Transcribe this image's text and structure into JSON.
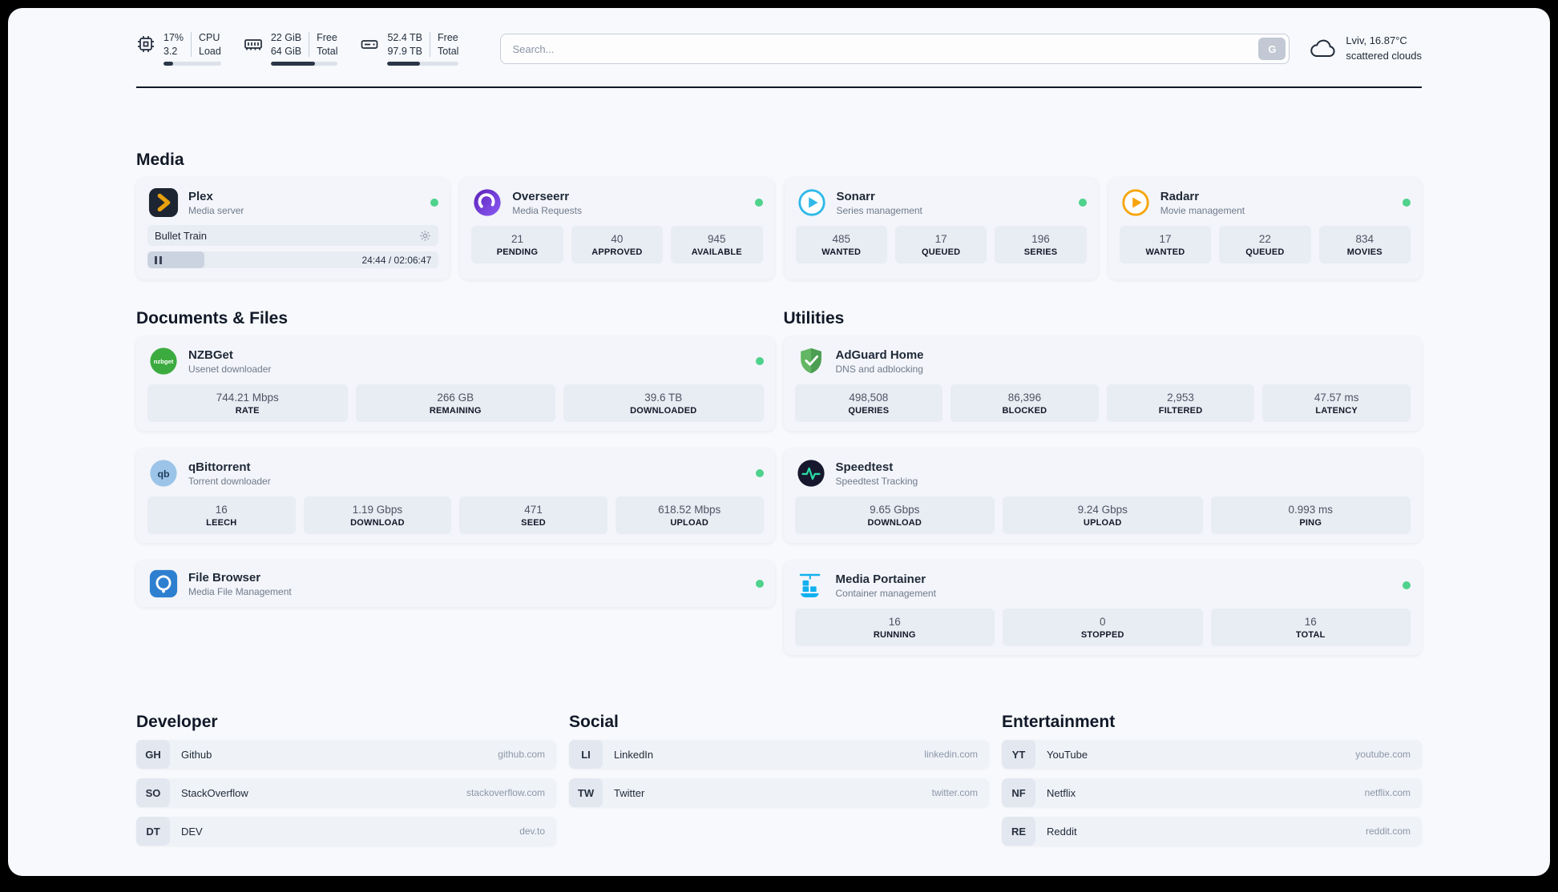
{
  "colors": {
    "status_ok": "#4fd28c",
    "divider": "#111827",
    "page_bg": "#f7f9fc",
    "tile_bg": "#e8ecf3",
    "bar_fill": "#2b3648"
  },
  "topbar": {
    "cpu": {
      "value1": "17%",
      "value2": "3.2",
      "label1": "CPU",
      "label2": "Load",
      "bar_pct": 17
    },
    "ram": {
      "value1": "22 GiB",
      "value2": "64 GiB",
      "label1": "Free",
      "label2": "Total",
      "bar_pct": 66
    },
    "disk": {
      "value1": "52.4 TB",
      "value2": "97.9 TB",
      "label1": "Free",
      "label2": "Total",
      "bar_pct": 46
    },
    "search": {
      "placeholder": "Search...",
      "button_label": "G"
    },
    "weather": {
      "location": "Lviv, 16.87°C",
      "condition": "scattered clouds"
    }
  },
  "media": {
    "title": "Media",
    "plex": {
      "name": "Plex",
      "subtitle": "Media server",
      "now_playing": "Bullet Train",
      "time": "24:44 / 02:06:47",
      "progress_pct": 19.6
    },
    "overseerr": {
      "name": "Overseerr",
      "subtitle": "Media Requests",
      "stats": [
        {
          "value": "21",
          "label": "PENDING"
        },
        {
          "value": "40",
          "label": "APPROVED"
        },
        {
          "value": "945",
          "label": "AVAILABLE"
        }
      ]
    },
    "sonarr": {
      "name": "Sonarr",
      "subtitle": "Series management",
      "stats": [
        {
          "value": "485",
          "label": "WANTED"
        },
        {
          "value": "17",
          "label": "QUEUED"
        },
        {
          "value": "196",
          "label": "SERIES"
        }
      ]
    },
    "radarr": {
      "name": "Radarr",
      "subtitle": "Movie management",
      "stats": [
        {
          "value": "17",
          "label": "WANTED"
        },
        {
          "value": "22",
          "label": "QUEUED"
        },
        {
          "value": "834",
          "label": "MOVIES"
        }
      ]
    }
  },
  "documents": {
    "title": "Documents & Files",
    "nzbget": {
      "name": "NZBGet",
      "subtitle": "Usenet downloader",
      "icon_label": "nzbget",
      "stats": [
        {
          "value": "744.21 Mbps",
          "label": "RATE"
        },
        {
          "value": "266 GB",
          "label": "REMAINING"
        },
        {
          "value": "39.6 TB",
          "label": "DOWNLOADED"
        }
      ]
    },
    "qbittorrent": {
      "name": "qBittorrent",
      "subtitle": "Torrent downloader",
      "icon_label": "qb",
      "stats": [
        {
          "value": "16",
          "label": "LEECH"
        },
        {
          "value": "1.19 Gbps",
          "label": "DOWNLOAD"
        },
        {
          "value": "471",
          "label": "SEED"
        },
        {
          "value": "618.52 Mbps",
          "label": "UPLOAD"
        }
      ]
    },
    "filebrowser": {
      "name": "File Browser",
      "subtitle": "Media File Management"
    }
  },
  "utilities": {
    "title": "Utilities",
    "adguard": {
      "name": "AdGuard Home",
      "subtitle": "DNS and adblocking",
      "stats": [
        {
          "value": "498,508",
          "label": "QUERIES"
        },
        {
          "value": "86,396",
          "label": "BLOCKED"
        },
        {
          "value": "2,953",
          "label": "FILTERED"
        },
        {
          "value": "47.57 ms",
          "label": "LATENCY"
        }
      ]
    },
    "speedtest": {
      "name": "Speedtest",
      "subtitle": "Speedtest Tracking",
      "stats": [
        {
          "value": "9.65 Gbps",
          "label": "DOWNLOAD"
        },
        {
          "value": "9.24 Gbps",
          "label": "UPLOAD"
        },
        {
          "value": "0.993 ms",
          "label": "PING"
        }
      ]
    },
    "portainer": {
      "name": "Media Portainer",
      "subtitle": "Container management",
      "stats": [
        {
          "value": "16",
          "label": "RUNNING"
        },
        {
          "value": "0",
          "label": "STOPPED"
        },
        {
          "value": "16",
          "label": "TOTAL"
        }
      ]
    }
  },
  "bookmarks": {
    "developer": {
      "title": "Developer",
      "items": [
        {
          "abbr": "GH",
          "name": "Github",
          "url": "github.com"
        },
        {
          "abbr": "SO",
          "name": "StackOverflow",
          "url": "stackoverflow.com"
        },
        {
          "abbr": "DT",
          "name": "DEV",
          "url": "dev.to"
        }
      ]
    },
    "social": {
      "title": "Social",
      "items": [
        {
          "abbr": "LI",
          "name": "LinkedIn",
          "url": "linkedin.com"
        },
        {
          "abbr": "TW",
          "name": "Twitter",
          "url": "twitter.com"
        }
      ]
    },
    "entertainment": {
      "title": "Entertainment",
      "items": [
        {
          "abbr": "YT",
          "name": "YouTube",
          "url": "youtube.com"
        },
        {
          "abbr": "NF",
          "name": "Netflix",
          "url": "netflix.com"
        },
        {
          "abbr": "RE",
          "name": "Reddit",
          "url": "reddit.com"
        }
      ]
    }
  }
}
